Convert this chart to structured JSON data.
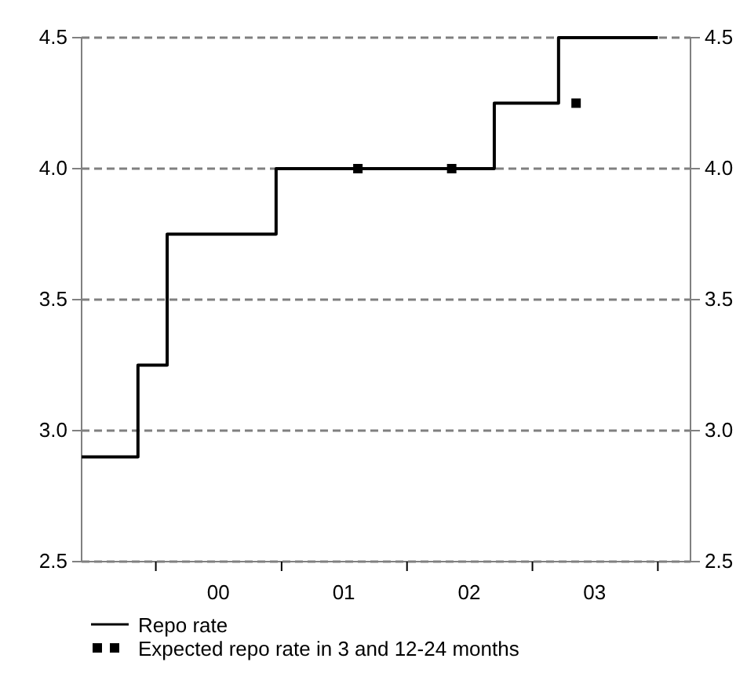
{
  "chart_data": {
    "type": "step",
    "legend": "bottom",
    "grid": "y",
    "xlim": [
      "1999-05-30",
      "2004-04-05"
    ],
    "xticks": [
      {
        "value": "2000-01-01",
        "label": null
      },
      {
        "value": "2000-07-01",
        "label": "00"
      },
      {
        "value": "2001-01-01",
        "label": null
      },
      {
        "value": "2001-07-01",
        "label": "01"
      },
      {
        "value": "2002-01-01",
        "label": null
      },
      {
        "value": "2002-07-01",
        "label": "02"
      },
      {
        "value": "2003-01-01",
        "label": null
      },
      {
        "value": "2003-07-01",
        "label": "03"
      },
      {
        "value": "2004-01-01",
        "label": null
      }
    ],
    "ylim": [
      2.5,
      4.5
    ],
    "yticks": [
      {
        "value": 2.5,
        "label": "2.5"
      },
      {
        "value": 3.0,
        "label": "3.0"
      },
      {
        "value": 3.5,
        "label": "3.5"
      },
      {
        "value": 4.0,
        "label": "4.0"
      },
      {
        "value": 4.5,
        "label": "4.5"
      }
    ],
    "y2lim": [
      2.5,
      4.5
    ],
    "y2ticks": [
      {
        "value": 2.5,
        "label": "2.5"
      },
      {
        "value": 3.0,
        "label": "3.0"
      },
      {
        "value": 3.5,
        "label": "3.5"
      },
      {
        "value": 4.0,
        "label": "4.0"
      },
      {
        "value": 4.5,
        "label": "4.5"
      }
    ],
    "series": [
      {
        "name": "Repo rate",
        "color": "#000000",
        "marker": "none",
        "x": [
          "1999-05-30",
          "1999-11-10",
          "2000-02-03",
          "2000-12-16",
          "2002-09-12",
          "2003-03-18",
          "2004-01-01"
        ],
        "values": [
          2.9,
          3.25,
          3.75,
          4.0,
          4.25,
          4.5,
          4.5
        ]
      },
      {
        "name": "Expected repo rate in 3 and 12-24 months",
        "type": "scatter",
        "color": "#000000",
        "marker": "square",
        "x": [
          "2001-08-11",
          "2002-05-11",
          "2003-05-08"
        ],
        "values": [
          4.0,
          4.0,
          4.25
        ]
      }
    ]
  }
}
